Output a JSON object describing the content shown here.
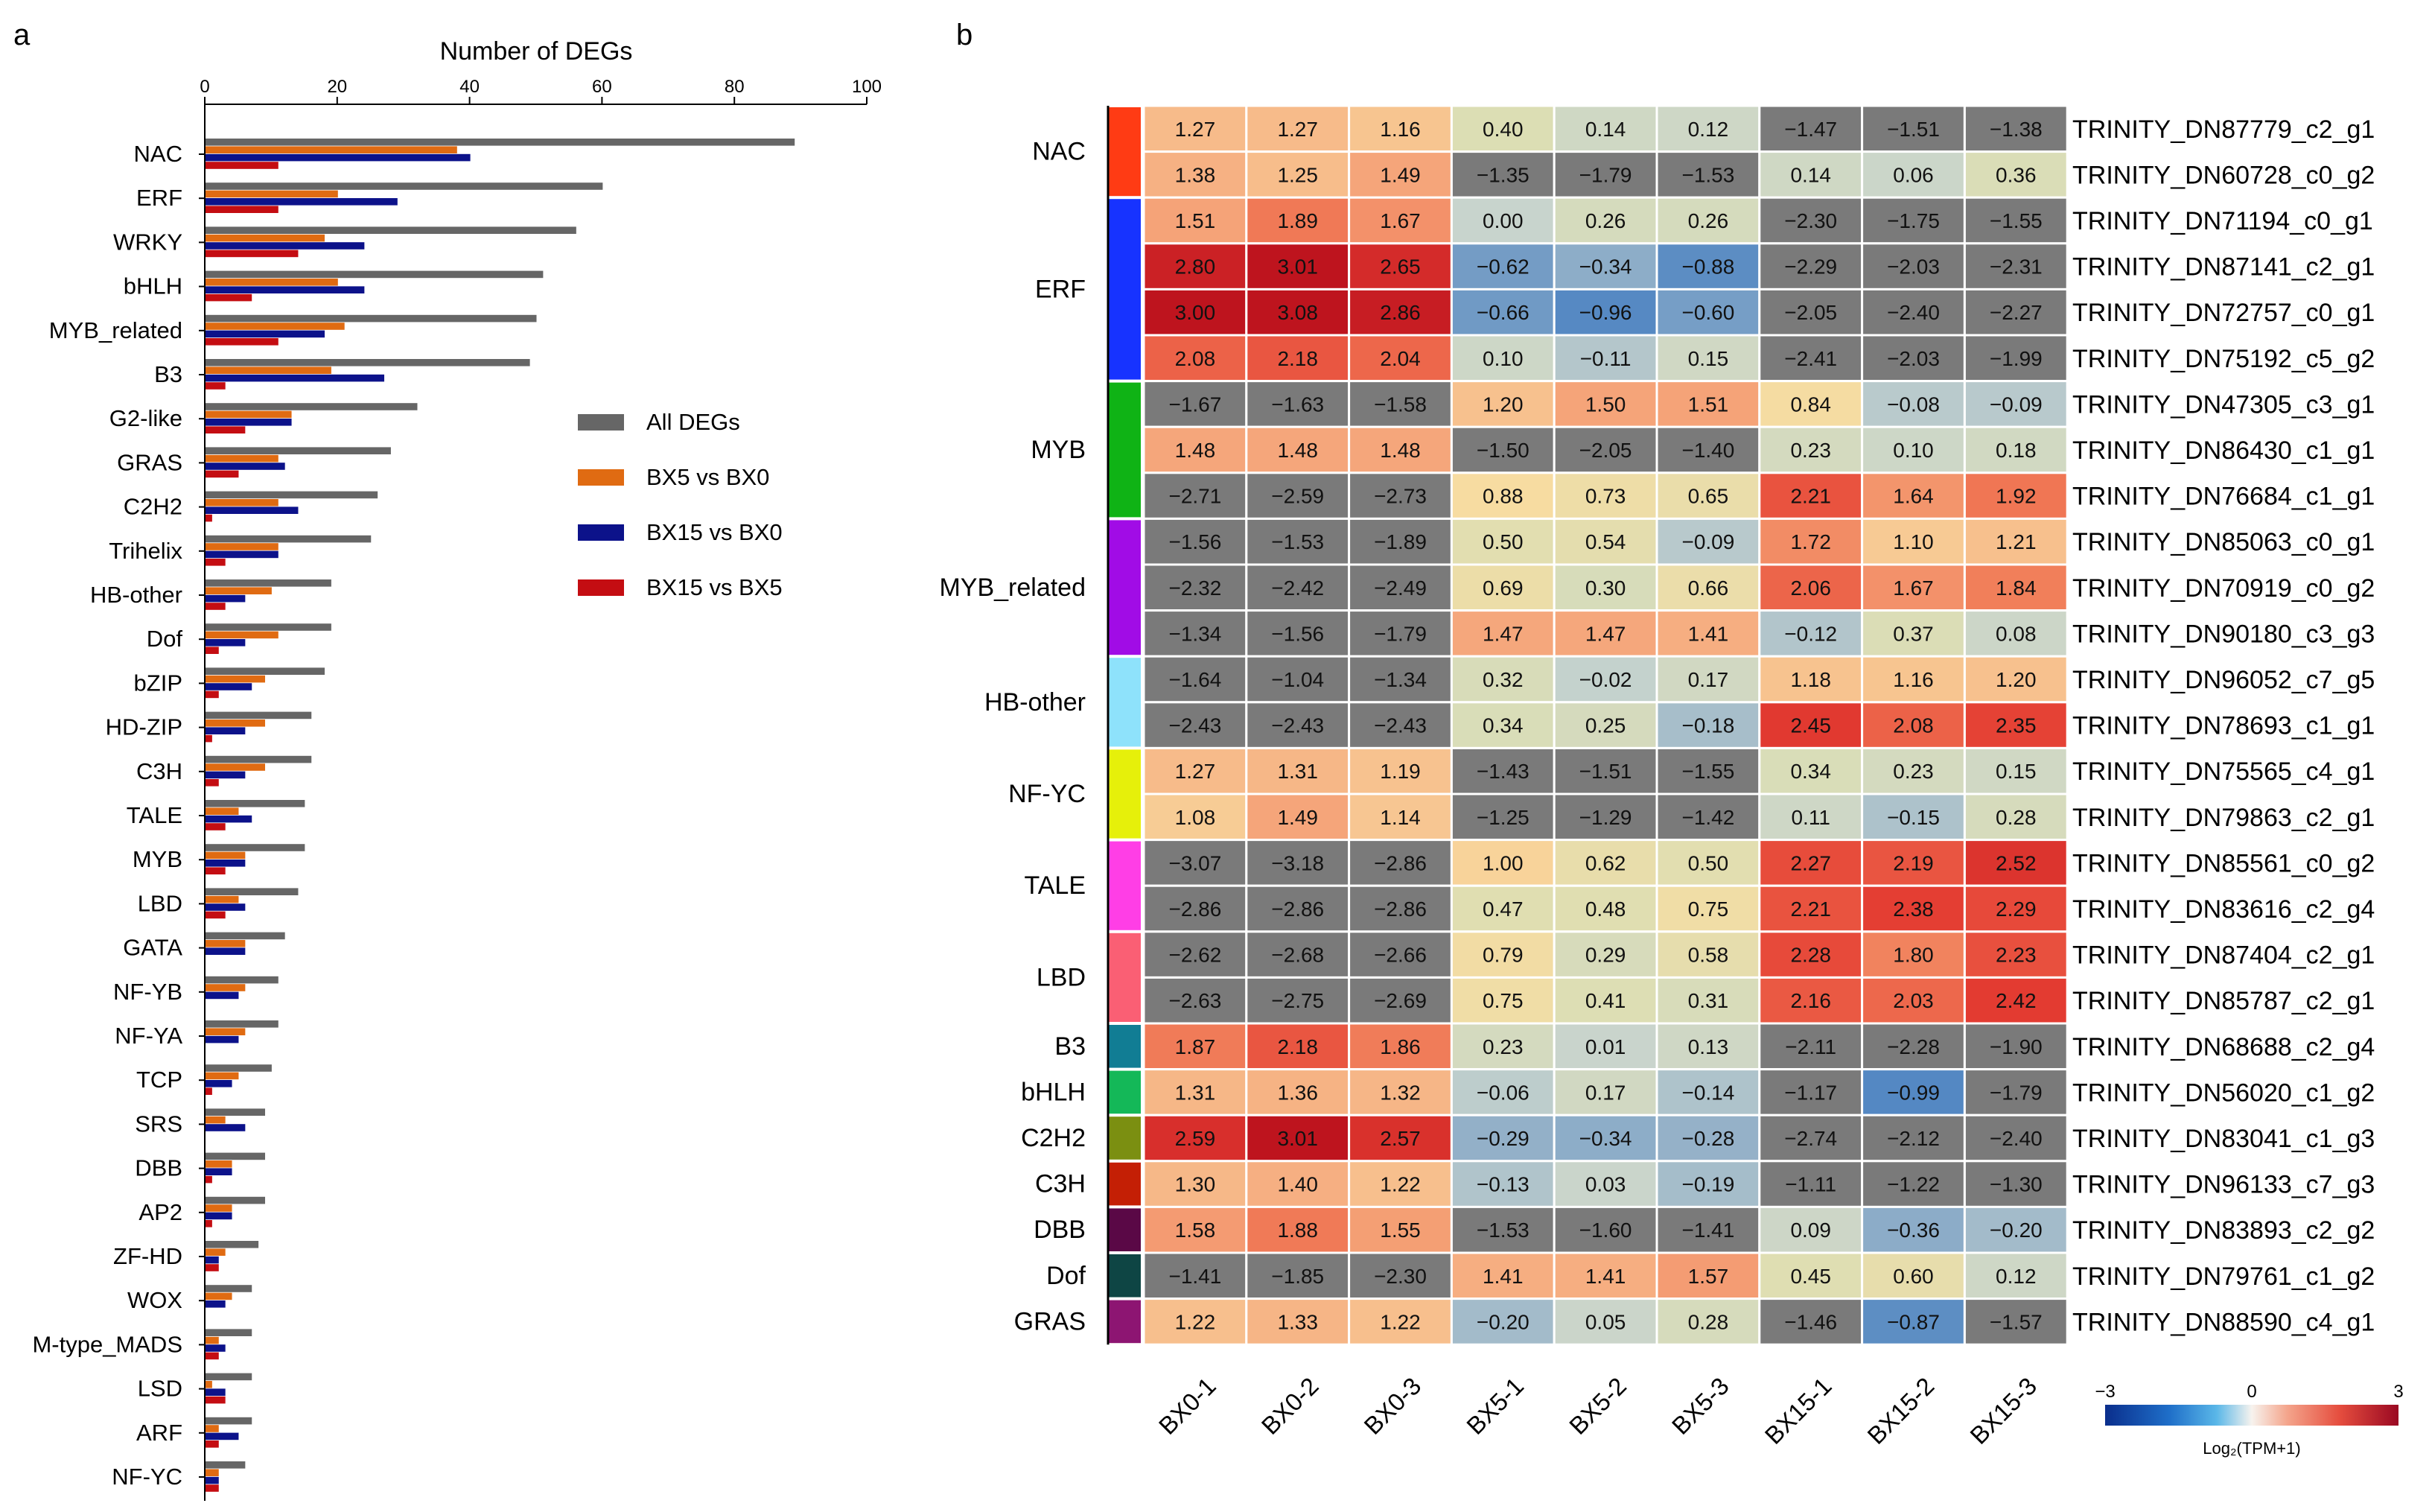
{
  "panels": {
    "a": "a",
    "b": "b"
  },
  "chart_data": [
    {
      "type": "bar",
      "orientation": "horizontal",
      "title": "Number of DEGs",
      "xlim": [
        0,
        100
      ],
      "xticks": [
        "0",
        "20",
        "40",
        "60",
        "80",
        "100"
      ],
      "categories": [
        "NAC",
        "ERF",
        "WRKY",
        "bHLH",
        "MYB_related",
        "B3",
        "G2-like",
        "GRAS",
        "C2H2",
        "Trihelix",
        "HB-other",
        "Dof",
        "bZIP",
        "HD-ZIP",
        "C3H",
        "TALE",
        "MYB",
        "LBD",
        "GATA",
        "NF-YB",
        "NF-YA",
        "TCP",
        "SRS",
        "DBB",
        "AP2",
        "ZF-HD",
        "WOX",
        "M-type_MADS",
        "LSD",
        "ARF",
        "NF-YC"
      ],
      "series": [
        {
          "name": "All DEGs",
          "color": "#666666",
          "values": [
            89,
            60,
            56,
            51,
            50,
            49,
            32,
            28,
            26,
            25,
            19,
            19,
            18,
            16,
            16,
            15,
            15,
            14,
            12,
            11,
            11,
            10,
            9,
            9,
            9,
            8,
            7,
            7,
            7,
            7,
            6
          ]
        },
        {
          "name": "BX5 vs BX0",
          "color": "#e06b12",
          "values": [
            38,
            20,
            18,
            20,
            21,
            19,
            13,
            11,
            11,
            11,
            10,
            11,
            9,
            9,
            9,
            5,
            6,
            5,
            6,
            6,
            6,
            5,
            3,
            4,
            4,
            3,
            4,
            2,
            1,
            2,
            2
          ]
        },
        {
          "name": "BX15 vs BX0",
          "color": "#0c128a",
          "values": [
            40,
            29,
            24,
            24,
            18,
            27,
            13,
            12,
            14,
            11,
            6,
            6,
            7,
            6,
            6,
            7,
            6,
            6,
            6,
            5,
            5,
            4,
            6,
            4,
            4,
            2,
            3,
            3,
            3,
            5,
            2
          ]
        },
        {
          "name": "BX15 vs BX5",
          "color": "#c40d12",
          "values": [
            11,
            11,
            14,
            7,
            11,
            3,
            6,
            5,
            1,
            3,
            3,
            2,
            2,
            1,
            2,
            3,
            3,
            3,
            0,
            0,
            0,
            1,
            0,
            1,
            1,
            2,
            0,
            2,
            3,
            2,
            2
          ]
        }
      ]
    },
    {
      "type": "heatmap",
      "columns": [
        "BX0-1",
        "BX0-2",
        "BX0-3",
        "BX5-1",
        "BX5-2",
        "BX5-3",
        "BX15-1",
        "BX15-2",
        "BX15-3"
      ],
      "groups": [
        {
          "name": "NAC",
          "color": "#ff3b14",
          "rows": 2
        },
        {
          "name": "ERF",
          "color": "#1733ff",
          "rows": 4
        },
        {
          "name": "MYB",
          "color": "#0fb315",
          "rows": 3
        },
        {
          "name": "MYB_related",
          "color": "#a10ce6",
          "rows": 3
        },
        {
          "name": "HB-other",
          "color": "#8ee2fb",
          "rows": 2
        },
        {
          "name": "NF-YC",
          "color": "#e6f00a",
          "rows": 2
        },
        {
          "name": "TALE",
          "color": "#ff3ee6",
          "rows": 2
        },
        {
          "name": "LBD",
          "color": "#fa5f74",
          "rows": 2
        },
        {
          "name": "B3",
          "color": "#117d94",
          "rows": 1
        },
        {
          "name": "bHLH",
          "color": "#14b858",
          "rows": 1
        },
        {
          "name": "C2H2",
          "color": "#7b8f11",
          "rows": 1
        },
        {
          "name": "C3H",
          "color": "#c41f05",
          "rows": 1
        },
        {
          "name": "DBB",
          "color": "#5a0846",
          "rows": 1
        },
        {
          "name": "Dof",
          "color": "#0e4544",
          "rows": 1
        },
        {
          "name": "GRAS",
          "color": "#8d1572",
          "rows": 1
        }
      ],
      "genes": [
        "TRINITY_DN87779_c2_g1",
        "TRINITY_DN60728_c0_g2",
        "TRINITY_DN71194_c0_g1",
        "TRINITY_DN87141_c2_g1",
        "TRINITY_DN72757_c0_g1",
        "TRINITY_DN75192_c5_g2",
        "TRINITY_DN47305_c3_g1",
        "TRINITY_DN86430_c1_g1",
        "TRINITY_DN76684_c1_g1",
        "TRINITY_DN85063_c0_g1",
        "TRINITY_DN70919_c0_g2",
        "TRINITY_DN90180_c3_g3",
        "TRINITY_DN96052_c7_g5",
        "TRINITY_DN78693_c1_g1",
        "TRINITY_DN75565_c4_g1",
        "TRINITY_DN79863_c2_g1",
        "TRINITY_DN85561_c0_g2",
        "TRINITY_DN83616_c2_g4",
        "TRINITY_DN87404_c2_g1",
        "TRINITY_DN85787_c2_g1",
        "TRINITY_DN68688_c2_g4",
        "TRINITY_DN56020_c1_g2",
        "TRINITY_DN83041_c1_g3",
        "TRINITY_DN96133_c7_g3",
        "TRINITY_DN83893_c2_g2",
        "TRINITY_DN79761_c1_g2",
        "TRINITY_DN88590_c4_g1"
      ],
      "values": [
        [
          "1.27",
          "1.27",
          "1.16",
          "0.40",
          "0.14",
          "0.12",
          "−1.47",
          "−1.51",
          "−1.38"
        ],
        [
          "1.38",
          "1.25",
          "1.49",
          "−1.35",
          "−1.79",
          "−1.53",
          "0.14",
          "0.06",
          "0.36"
        ],
        [
          "1.51",
          "1.89",
          "1.67",
          "0.00",
          "0.26",
          "0.26",
          "−2.30",
          "−1.75",
          "−1.55"
        ],
        [
          "2.80",
          "3.01",
          "2.65",
          "−0.62",
          "−0.34",
          "−0.88",
          "−2.29",
          "−2.03",
          "−2.31"
        ],
        [
          "3.00",
          "3.08",
          "2.86",
          "−0.66",
          "−0.96",
          "−0.60",
          "−2.05",
          "−2.40",
          "−2.27"
        ],
        [
          "2.08",
          "2.18",
          "2.04",
          "0.10",
          "−0.11",
          "0.15",
          "−2.41",
          "−2.03",
          "−1.99"
        ],
        [
          "−1.67",
          "−1.63",
          "−1.58",
          "1.20",
          "1.50",
          "1.51",
          "0.84",
          "−0.08",
          "−0.09"
        ],
        [
          "1.48",
          "1.48",
          "1.48",
          "−1.50",
          "−2.05",
          "−1.40",
          "0.23",
          "0.10",
          "0.18"
        ],
        [
          "−2.71",
          "−2.59",
          "−2.73",
          "0.88",
          "0.73",
          "0.65",
          "2.21",
          "1.64",
          "1.92"
        ],
        [
          "−1.56",
          "−1.53",
          "−1.89",
          "0.50",
          "0.54",
          "−0.09",
          "1.72",
          "1.10",
          "1.21"
        ],
        [
          "−2.32",
          "−2.42",
          "−2.49",
          "0.69",
          "0.30",
          "0.66",
          "2.06",
          "1.67",
          "1.84"
        ],
        [
          "−1.34",
          "−1.56",
          "−1.79",
          "1.47",
          "1.47",
          "1.41",
          "−0.12",
          "0.37",
          "0.08"
        ],
        [
          "−1.64",
          "−1.04",
          "−1.34",
          "0.32",
          "−0.02",
          "0.17",
          "1.18",
          "1.16",
          "1.20"
        ],
        [
          "−2.43",
          "−2.43",
          "−2.43",
          "0.34",
          "0.25",
          "−0.18",
          "2.45",
          "2.08",
          "2.35"
        ],
        [
          "1.27",
          "1.31",
          "1.19",
          "−1.43",
          "−1.51",
          "−1.55",
          "0.34",
          "0.23",
          "0.15"
        ],
        [
          "1.08",
          "1.49",
          "1.14",
          "−1.25",
          "−1.29",
          "−1.42",
          "0.11",
          "−0.15",
          "0.28"
        ],
        [
          "−3.07",
          "−3.18",
          "−2.86",
          "1.00",
          "0.62",
          "0.50",
          "2.27",
          "2.19",
          "2.52"
        ],
        [
          "−2.86",
          "−2.86",
          "−2.86",
          "0.47",
          "0.48",
          "0.75",
          "2.21",
          "2.38",
          "2.29"
        ],
        [
          "−2.62",
          "−2.68",
          "−2.66",
          "0.79",
          "0.29",
          "0.58",
          "2.28",
          "1.80",
          "2.23"
        ],
        [
          "−2.63",
          "−2.75",
          "−2.69",
          "0.75",
          "0.41",
          "0.31",
          "2.16",
          "2.03",
          "2.42"
        ],
        [
          "1.87",
          "2.18",
          "1.86",
          "0.23",
          "0.01",
          "0.13",
          "−2.11",
          "−2.28",
          "−1.90"
        ],
        [
          "1.31",
          "1.36",
          "1.32",
          "−0.06",
          "0.17",
          "−0.14",
          "−1.17",
          "−0.99",
          "−1.79"
        ],
        [
          "2.59",
          "3.01",
          "2.57",
          "−0.29",
          "−0.34",
          "−0.28",
          "−2.74",
          "−2.12",
          "−2.40"
        ],
        [
          "1.30",
          "1.40",
          "1.22",
          "−0.13",
          "0.03",
          "−0.19",
          "−1.11",
          "−1.22",
          "−1.30"
        ],
        [
          "1.58",
          "1.88",
          "1.55",
          "−1.53",
          "−1.60",
          "−1.41",
          "0.09",
          "−0.36",
          "−0.20"
        ],
        [
          "−1.41",
          "−1.85",
          "−2.30",
          "1.41",
          "1.41",
          "1.57",
          "0.45",
          "0.60",
          "0.12"
        ],
        [
          "1.22",
          "1.33",
          "1.22",
          "−0.20",
          "0.05",
          "0.28",
          "−1.46",
          "−0.87",
          "−1.57"
        ]
      ],
      "colorbar": {
        "label": "Log₂(TPM+1)",
        "min": -3,
        "max": 3,
        "ticks": [
          "−3",
          "0",
          "3"
        ]
      }
    }
  ]
}
